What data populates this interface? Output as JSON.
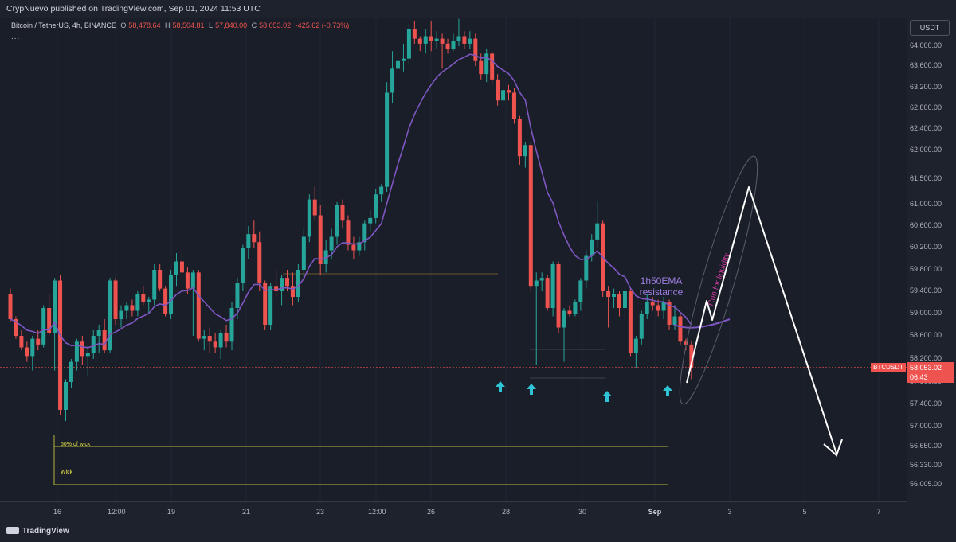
{
  "header": {
    "published": "CrypNuevo published on TradingView.com, Sep 01, 2024 11:53 UTC"
  },
  "legend": {
    "symbol": "Bitcoin / TetherUS, 4h, BINANCE",
    "open_label": "O",
    "open": "58,478.64",
    "high_label": "H",
    "high": "58,504.81",
    "low_label": "L",
    "low": "57,840.00",
    "close_label": "C",
    "close": "58,053.02",
    "change": "-425.62 (-0.73%)",
    "more": "..."
  },
  "currency": "USDT",
  "price_tag": {
    "symbol": "BTCUSDT",
    "price": "58,053.02",
    "countdown": "06:43"
  },
  "branding": "TradingView",
  "colors": {
    "up": "#26a69a",
    "down": "#ef5350",
    "ema": "#7e57c2",
    "background": "#1a1e29",
    "arrow_marker": "#2ec4d6",
    "projection": "#ffffff",
    "level_line": "#b5b53a"
  },
  "chart_data": {
    "type": "candlestick",
    "title": "Bitcoin / TetherUS, 4h, BINANCE",
    "price_axis": {
      "ticks": [
        64000,
        63600,
        63200,
        62800,
        62400,
        62000,
        61500,
        61000,
        60600,
        60200,
        59800,
        59400,
        59000,
        58600,
        58200,
        57800,
        57400,
        57000,
        56650,
        56330,
        56005
      ],
      "tick_labels": [
        "64,000.00",
        "63,600.00",
        "63,200.00",
        "62,800.00",
        "62,400.00",
        "62,000.00",
        "61,500.00",
        "61,000.00",
        "60,600.00",
        "60,200.00",
        "59,800.00",
        "59,400.00",
        "59,000.00",
        "58,600.00",
        "58,200.00",
        "57,800.00",
        "57,400.00",
        "57,000.00",
        "56,650.00",
        "56,330.00",
        "56,005.00"
      ]
    },
    "time_axis": {
      "labels": [
        "16",
        "12:00",
        "19",
        "21",
        "23",
        "12:00",
        "26",
        "28",
        "30",
        "Sep",
        "3",
        "5",
        "7"
      ],
      "bold": [
        false,
        false,
        false,
        false,
        false,
        false,
        false,
        false,
        false,
        true,
        false,
        false,
        false
      ]
    },
    "candles": [
      [
        59350,
        59450,
        58850,
        58900
      ],
      [
        58900,
        58950,
        58550,
        58600
      ],
      [
        58600,
        58700,
        58350,
        58400
      ],
      [
        58400,
        58500,
        58150,
        58250
      ],
      [
        58250,
        58600,
        58000,
        58550
      ],
      [
        58550,
        58700,
        58350,
        58450
      ],
      [
        58450,
        59150,
        58400,
        59100
      ],
      [
        59100,
        59350,
        58600,
        58650
      ],
      [
        58650,
        59650,
        58000,
        59600
      ],
      [
        59600,
        59700,
        57200,
        57300
      ],
      [
        57300,
        57850,
        57100,
        57800
      ],
      [
        57800,
        58200,
        57700,
        58150
      ],
      [
        58150,
        58550,
        58000,
        58500
      ],
      [
        58500,
        58600,
        58100,
        58250
      ],
      [
        58250,
        58450,
        57900,
        58300
      ],
      [
        58300,
        58700,
        58200,
        58600
      ],
      [
        58600,
        58800,
        58300,
        58700
      ],
      [
        58700,
        58900,
        58300,
        58350
      ],
      [
        58350,
        59650,
        58300,
        59600
      ],
      [
        59600,
        59650,
        58800,
        58900
      ],
      [
        58900,
        59150,
        58750,
        59050
      ],
      [
        59050,
        59200,
        58900,
        59150
      ],
      [
        59150,
        59250,
        58950,
        59050
      ],
      [
        59050,
        59400,
        58950,
        59350
      ],
      [
        59350,
        59500,
        59150,
        59200
      ],
      [
        59200,
        59300,
        59000,
        59250
      ],
      [
        59250,
        59900,
        59150,
        59800
      ],
      [
        59800,
        59900,
        59400,
        59450
      ],
      [
        59450,
        59500,
        58950,
        59000
      ],
      [
        59000,
        59800,
        58900,
        59700
      ],
      [
        59700,
        60100,
        59500,
        59950
      ],
      [
        59950,
        60100,
        59650,
        59750
      ],
      [
        59750,
        59850,
        59350,
        59450
      ],
      [
        59450,
        59800,
        58600,
        59750
      ],
      [
        59750,
        59800,
        58500,
        58550
      ],
      [
        58550,
        58700,
        58350,
        58600
      ],
      [
        58600,
        58750,
        58300,
        58500
      ],
      [
        58500,
        58650,
        58300,
        58400
      ],
      [
        58400,
        58700,
        58200,
        58650
      ],
      [
        58650,
        58800,
        58400,
        58500
      ],
      [
        58500,
        59200,
        58350,
        59100
      ],
      [
        59100,
        59650,
        58900,
        59550
      ],
      [
        59550,
        60250,
        59400,
        60200
      ],
      [
        60200,
        60600,
        60000,
        60450
      ],
      [
        60450,
        60700,
        60200,
        60300
      ],
      [
        60300,
        60500,
        59400,
        59550
      ],
      [
        59550,
        59600,
        58700,
        58800
      ],
      [
        58800,
        59550,
        58700,
        59500
      ],
      [
        59500,
        59800,
        59300,
        59400
      ],
      [
        59400,
        59700,
        59150,
        59650
      ],
      [
        59650,
        59800,
        59400,
        59500
      ],
      [
        59500,
        59750,
        59150,
        59300
      ],
      [
        59300,
        59900,
        59200,
        59800
      ],
      [
        59800,
        60550,
        59650,
        60400
      ],
      [
        60400,
        61200,
        60300,
        61100
      ],
      [
        61100,
        61350,
        60700,
        60800
      ],
      [
        60800,
        61000,
        59700,
        59900
      ],
      [
        59900,
        60350,
        59750,
        60150
      ],
      [
        60150,
        60550,
        60000,
        60400
      ],
      [
        60400,
        61050,
        60250,
        61000
      ],
      [
        61000,
        61100,
        60550,
        60700
      ],
      [
        60700,
        60800,
        60150,
        60250
      ],
      [
        60250,
        60400,
        60000,
        60150
      ],
      [
        60150,
        60400,
        60050,
        60300
      ],
      [
        60300,
        60700,
        60150,
        60650
      ],
      [
        60650,
        60900,
        60500,
        60750
      ],
      [
        60750,
        61300,
        60650,
        61200
      ],
      [
        61200,
        61400,
        61050,
        61350
      ],
      [
        61350,
        63300,
        61250,
        63100
      ],
      [
        63100,
        63900,
        62900,
        63550
      ],
      [
        63550,
        63950,
        63300,
        63700
      ],
      [
        63700,
        64050,
        63500,
        63750
      ],
      [
        63750,
        64450,
        63650,
        64350
      ],
      [
        64350,
        64500,
        64050,
        64150
      ],
      [
        64150,
        64200,
        63900,
        64050
      ],
      [
        64050,
        64350,
        63850,
        64200
      ],
      [
        64200,
        64500,
        63900,
        64100
      ],
      [
        64100,
        64300,
        63950,
        64150
      ],
      [
        64150,
        64250,
        63550,
        64050
      ],
      [
        64050,
        64150,
        63850,
        63950
      ],
      [
        63950,
        64250,
        63900,
        64100
      ],
      [
        64100,
        64550,
        64000,
        64200
      ],
      [
        64200,
        64300,
        63950,
        64050
      ],
      [
        64050,
        64300,
        63950,
        64150
      ],
      [
        64150,
        64250,
        63600,
        63700
      ],
      [
        63700,
        63850,
        63350,
        63450
      ],
      [
        63450,
        63950,
        63300,
        63850
      ],
      [
        63850,
        63900,
        63250,
        63350
      ],
      [
        63350,
        63450,
        62850,
        62950
      ],
      [
        62950,
        63300,
        62800,
        63150
      ],
      [
        63150,
        63250,
        62950,
        63100
      ],
      [
        63100,
        63200,
        62500,
        62600
      ],
      [
        62600,
        62650,
        61750,
        61900
      ],
      [
        61900,
        62150,
        61700,
        62100
      ],
      [
        62100,
        62150,
        59400,
        59500
      ],
      [
        59500,
        59750,
        58100,
        59600
      ],
      [
        59600,
        59750,
        59400,
        59650
      ],
      [
        59650,
        59700,
        59050,
        59100
      ],
      [
        59100,
        59950,
        58950,
        59900
      ],
      [
        59900,
        59950,
        58650,
        58750
      ],
      [
        58750,
        59100,
        58150,
        59050
      ],
      [
        59050,
        59150,
        58950,
        59000
      ],
      [
        59000,
        59250,
        58950,
        59200
      ],
      [
        59200,
        59650,
        59050,
        59600
      ],
      [
        59600,
        60150,
        59450,
        60050
      ],
      [
        60050,
        60450,
        59950,
        60350
      ],
      [
        60350,
        61050,
        60200,
        60650
      ],
      [
        60650,
        60700,
        59300,
        59400
      ],
      [
        59400,
        59500,
        58750,
        59300
      ],
      [
        59300,
        59450,
        59100,
        59350
      ],
      [
        59350,
        59400,
        58950,
        59100
      ],
      [
        59100,
        59500,
        58900,
        59400
      ],
      [
        59400,
        59450,
        58250,
        58300
      ],
      [
        58300,
        58600,
        58050,
        58550
      ],
      [
        58550,
        59050,
        58450,
        59000
      ],
      [
        59000,
        59350,
        58900,
        59200
      ],
      [
        59200,
        59300,
        59050,
        59150
      ],
      [
        59150,
        59250,
        58950,
        59050
      ],
      [
        59050,
        59300,
        58900,
        59200
      ],
      [
        59200,
        59250,
        58700,
        58800
      ],
      [
        58800,
        59150,
        58700,
        58950
      ],
      [
        58950,
        59000,
        58450,
        58500
      ],
      [
        58500,
        58550,
        58350,
        58450
      ],
      [
        58450,
        58500,
        57850,
        58050
      ]
    ],
    "ema_label": [
      "1h50EMA",
      "resistance"
    ],
    "annotations": {
      "run_for_liquidity": "Run for liquidity",
      "half_wick": "50% of wick",
      "wick": "Wick"
    },
    "levels": [
      56650,
      56005
    ],
    "current_price": 58053.02
  }
}
